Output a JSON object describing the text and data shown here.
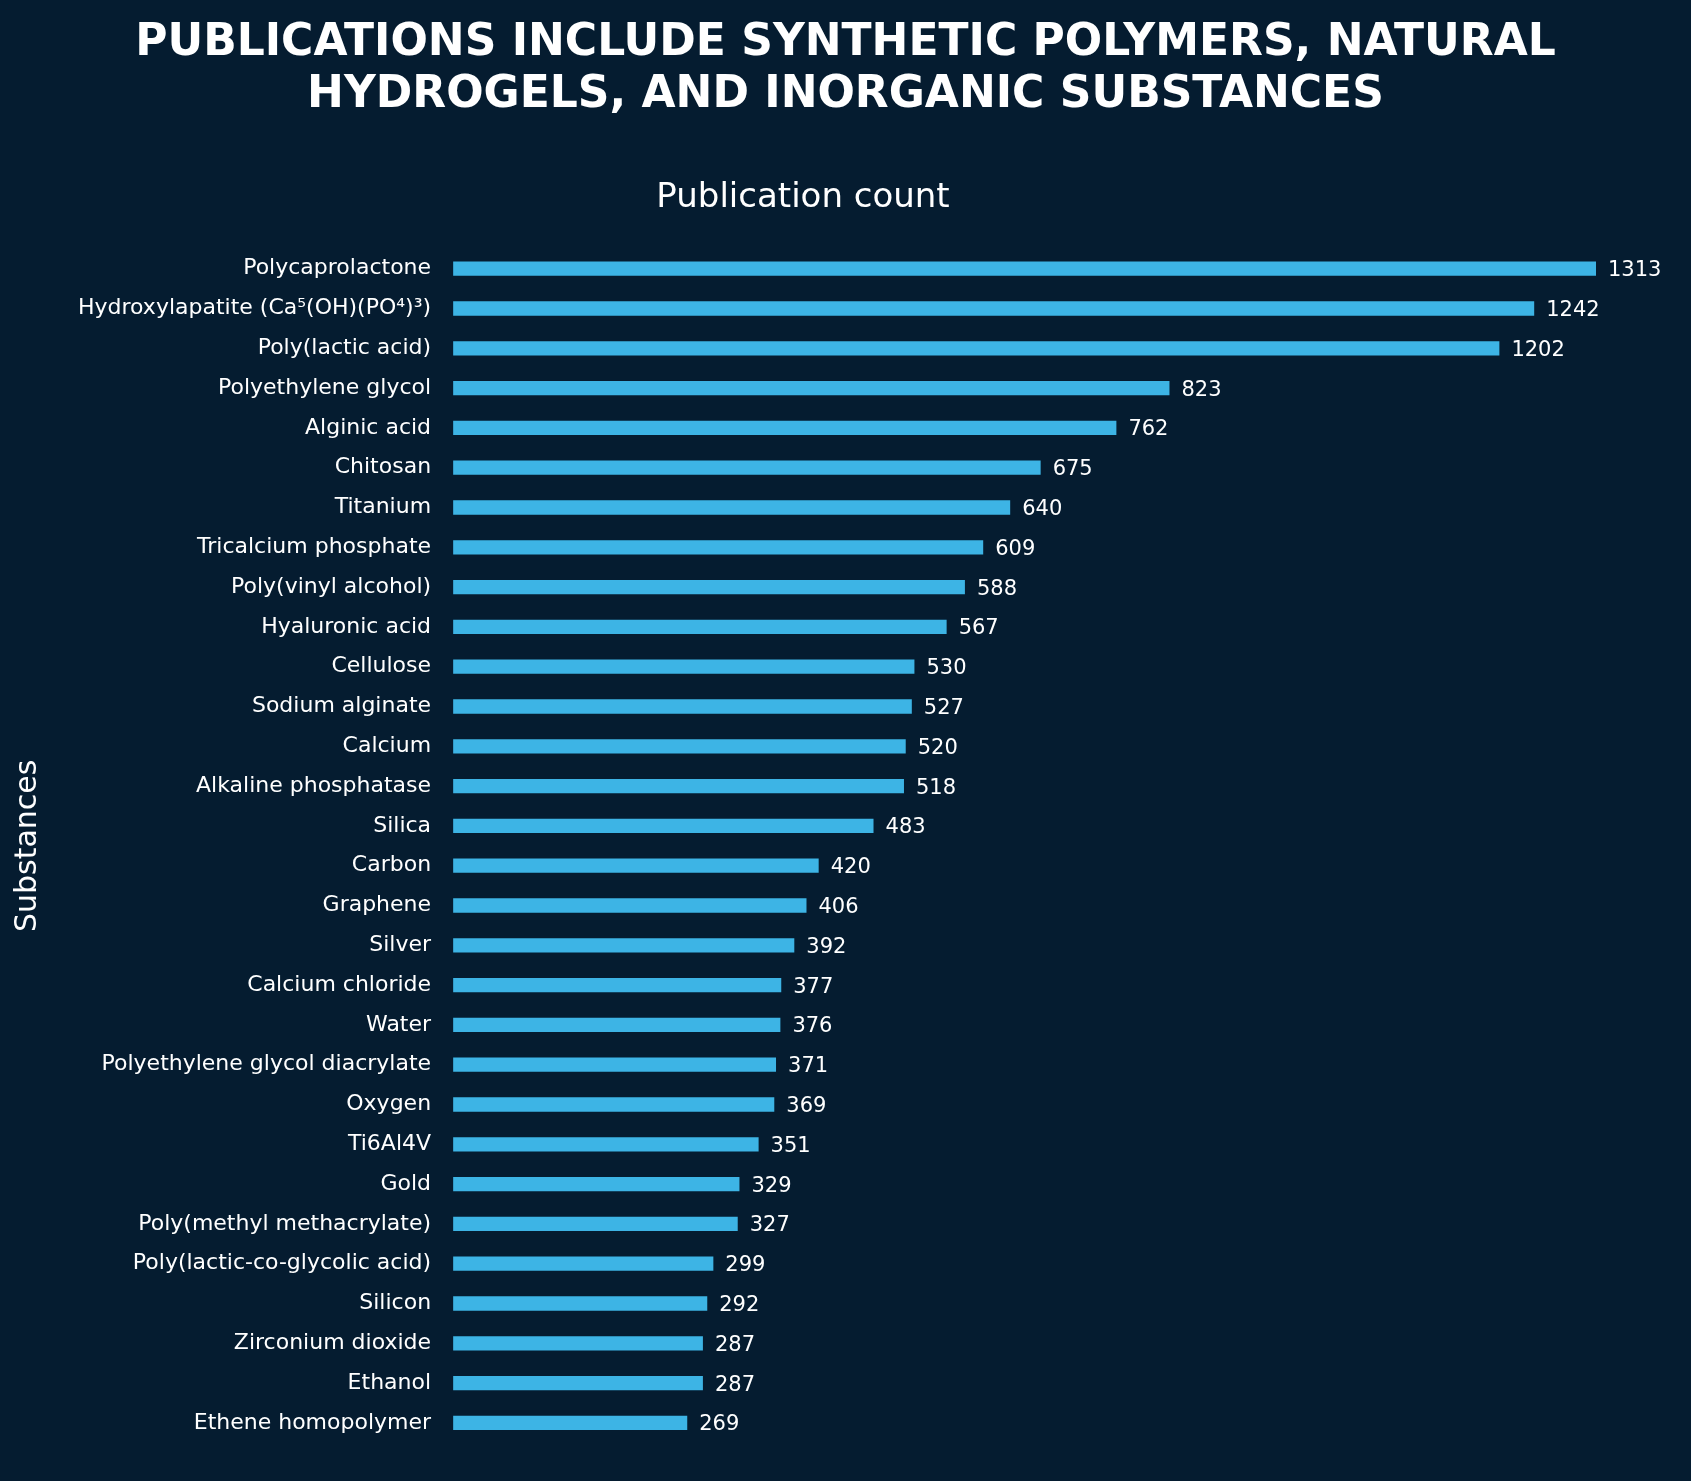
{
  "chart_data": {
    "type": "bar",
    "orientation": "horizontal",
    "title": "PUBLICATIONS INCLUDE SYNTHETIC POLYMERS, NATURAL HYDROGELS, AND INORGANIC SUBSTANCES",
    "subtitle": "Publication count",
    "ylabel": "Substances",
    "categories": [
      "Polycaprolactone",
      "Hydroxylapatite (Ca⁵(OH)(PO⁴)³)",
      "Poly(lactic acid)",
      "Polyethylene glycol",
      "Alginic acid",
      "Chitosan",
      "Titanium",
      "Tricalcium phosphate",
      "Poly(vinyl alcohol)",
      "Hyaluronic acid",
      "Cellulose",
      "Sodium alginate",
      "Calcium",
      "Alkaline phosphatase",
      "Silica",
      "Carbon",
      "Graphene",
      "Silver",
      "Calcium chloride",
      "Water",
      "Polyethylene glycol diacrylate",
      "Oxygen",
      "Ti6Al4V",
      "Gold",
      "Poly(methyl methacrylate)",
      "Poly(lactic-co-glycolic acid)",
      "Silicon",
      "Zirconium dioxide",
      "Ethanol",
      "Ethene homopolymer"
    ],
    "values": [
      1313,
      1242,
      1202,
      823,
      762,
      675,
      640,
      609,
      588,
      567,
      530,
      527,
      520,
      518,
      483,
      420,
      406,
      392,
      377,
      376,
      371,
      369,
      351,
      329,
      327,
      299,
      292,
      287,
      287,
      269
    ],
    "color": "#3db4e5",
    "data_labels": true,
    "legend": false,
    "tick_labels": "y"
  }
}
